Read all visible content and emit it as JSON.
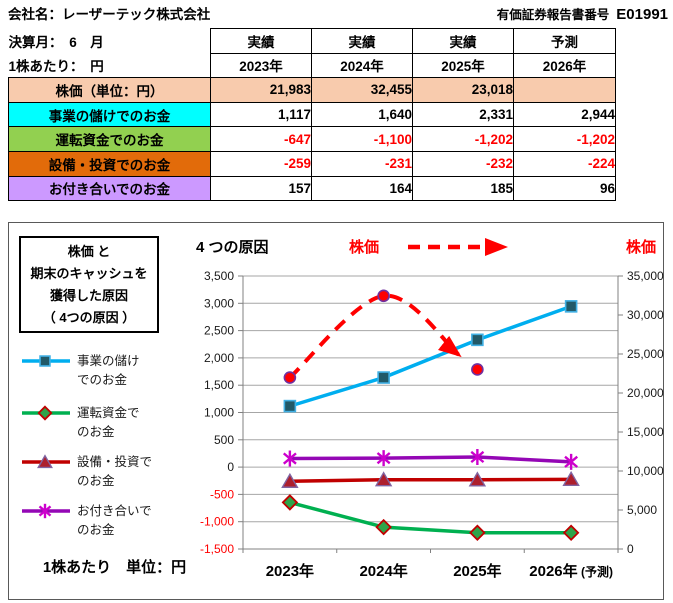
{
  "header": {
    "company": "会社名：レーザーテック株式会社",
    "report_label": "有価証券報告書番号",
    "report_number": "E01991"
  },
  "table": {
    "meta": {
      "fiscal_month": "決算月：　6　月",
      "per_share": "1株あたり：　円"
    },
    "columns": [
      {
        "status": "実績",
        "year": "2023年"
      },
      {
        "status": "実績",
        "year": "2024年"
      },
      {
        "status": "実績",
        "year": "2025年"
      },
      {
        "status": "予測",
        "year": "2026年"
      }
    ],
    "rows": [
      {
        "label": "株価（単位：円）",
        "bg": "#F8CBAD",
        "fill_data_cells": true,
        "values": [
          "21,983",
          "32,455",
          "23,018",
          ""
        ]
      },
      {
        "label": "事業の儲けでのお金",
        "bg": "#00FFFF",
        "fill_data_cells": false,
        "values": [
          "1,117",
          "1,640",
          "2,331",
          "2,944"
        ]
      },
      {
        "label": "運転資金でのお金",
        "bg": "#92D050",
        "fill_data_cells": false,
        "values": [
          "-647",
          "-1,100",
          "-1,202",
          "-1,202"
        ]
      },
      {
        "label": "設備・投資でのお金",
        "bg": "#E26B0A",
        "fill_data_cells": false,
        "values": [
          "-259",
          "-231",
          "-232",
          "-224"
        ]
      },
      {
        "label": "お付き合いでのお金",
        "bg": "#CC99FF",
        "fill_data_cells": false,
        "values": [
          "157",
          "164",
          "185",
          "96"
        ]
      }
    ],
    "negative_color": "#FF0000"
  },
  "chart": {
    "info_box_lines": [
      "株価 と",
      "期末のキャッシュを",
      "獲得した原因",
      "（ 4つの原因 ）"
    ],
    "top_title": "4 つの原因",
    "stock_arrow_label": "株価",
    "stock_right_label": "株価",
    "unit_note": "1株あたり　単位：円",
    "legend": [
      {
        "lines": [
          "事業の儲け",
          "でのお金"
        ],
        "series": 0
      },
      {
        "lines": [
          "運転資金で",
          "のお金"
        ],
        "series": 1
      },
      {
        "lines": [
          "設備・投資で",
          "のお金"
        ],
        "series": 2
      },
      {
        "lines": [
          "お付き合いで",
          "のお金"
        ],
        "series": 3
      }
    ]
  },
  "chart_data": {
    "type": "line",
    "categories": [
      "2023年",
      "2024年",
      "2025年",
      "2026年 (予測)"
    ],
    "series": [
      {
        "name": "事業の儲けでのお金",
        "axis": "left",
        "line_color": "#00AEEF",
        "marker": "square",
        "marker_fill": "#215968",
        "marker_stroke": "#41B0E4",
        "dashed": false,
        "values": [
          1117,
          1640,
          2331,
          2944
        ]
      },
      {
        "name": "運転資金でのお金",
        "axis": "left",
        "line_color": "#00B050",
        "marker": "diamond",
        "marker_fill": "#2EA44A",
        "marker_stroke": "#C00000",
        "dashed": false,
        "values": [
          -647,
          -1100,
          -1202,
          -1202
        ]
      },
      {
        "name": "設備・投資でのお金",
        "axis": "left",
        "line_color": "#C00000",
        "marker": "triangle",
        "marker_fill": "#AD1F2D",
        "marker_stroke": "#8064A2",
        "dashed": false,
        "values": [
          -259,
          -231,
          -232,
          -224
        ]
      },
      {
        "name": "お付き合いでのお金",
        "axis": "left",
        "line_color": "#9407B5",
        "marker": "asterisk",
        "marker_fill": "#CC00CC",
        "marker_stroke": "#CC00CC",
        "dashed": false,
        "values": [
          157,
          164,
          185,
          96
        ]
      },
      {
        "name": "株価",
        "axis": "right",
        "line_color": "#FF0000",
        "marker": "circle",
        "marker_fill": "#FF0000",
        "marker_stroke": "#7030A0",
        "dashed": true,
        "values": [
          21983,
          32455,
          23018,
          null
        ]
      }
    ],
    "left_axis": {
      "min": -1500,
      "max": 3500,
      "step": 500,
      "negative_color": "#FF0000"
    },
    "right_axis": {
      "min": 0,
      "max": 35000,
      "step": 5000
    },
    "grid": true,
    "legend_position": "left",
    "title": "4 つの原因"
  }
}
